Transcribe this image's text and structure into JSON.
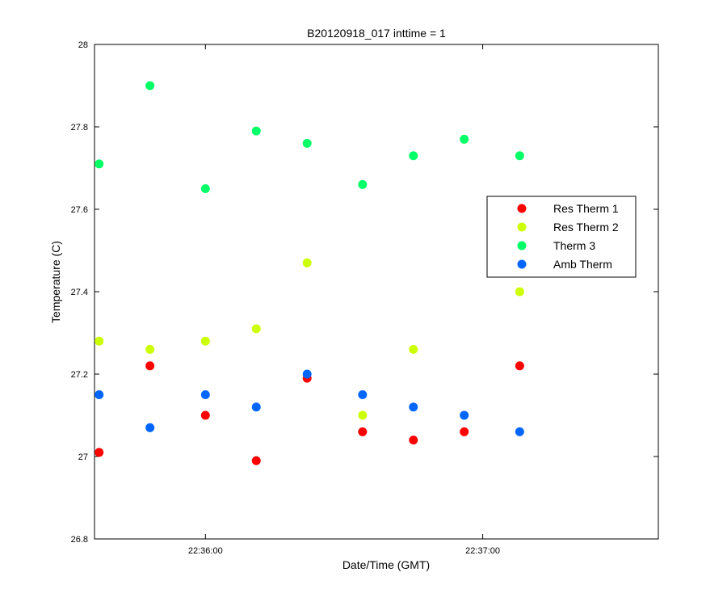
{
  "chart_data": {
    "type": "scatter",
    "title": "B20120918_017 inttime = 1",
    "xlabel": "Date/Time (GMT)",
    "ylabel": "Temperature (C)",
    "xlim": [
      "22:35:36",
      "22:37:38"
    ],
    "ylim": [
      26.8,
      28
    ],
    "x_ticks": [
      "22:36:00",
      "22:37:00"
    ],
    "y_ticks": [
      "26.8",
      "27",
      "27.2",
      "27.4",
      "27.6",
      "27.8",
      "28"
    ],
    "grid": false,
    "legend_position": "right",
    "x": [
      "22:35:37",
      "22:35:48",
      "22:36:00",
      "22:36:11",
      "22:36:22",
      "22:36:34",
      "22:36:45",
      "22:36:56",
      "22:37:08"
    ],
    "series": [
      {
        "name": "Res Therm 1",
        "color": "#ff0000",
        "values": [
          27.01,
          27.22,
          27.1,
          26.99,
          27.19,
          27.06,
          27.04,
          27.06,
          27.22
        ]
      },
      {
        "name": "Res Therm 2",
        "color": "#ccff00",
        "values": [
          27.28,
          27.26,
          27.28,
          27.31,
          27.47,
          27.1,
          27.26,
          27.1,
          27.4
        ]
      },
      {
        "name": "Therm 3",
        "color": "#00ff66",
        "values": [
          27.71,
          27.9,
          27.65,
          27.79,
          27.76,
          27.66,
          27.73,
          27.77,
          27.73
        ]
      },
      {
        "name": "Amb Therm",
        "color": "#0066ff",
        "values": [
          27.15,
          27.07,
          27.15,
          27.12,
          27.2,
          27.15,
          27.12,
          27.1,
          27.06
        ]
      }
    ]
  }
}
